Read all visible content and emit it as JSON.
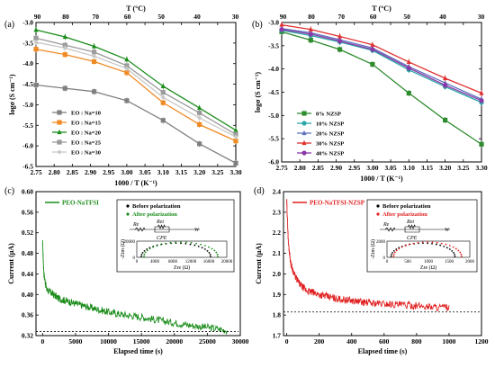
{
  "panels": {
    "a": "(a)",
    "b": "(b)",
    "c": "(c)",
    "d": "(d)"
  },
  "chart_data": [
    {
      "id": "a",
      "type": "line",
      "xlabel": "1000 / T (K⁻¹)",
      "ylabel": "logσ (S cm⁻¹)",
      "top_axis_label": "T (°C)",
      "top_ticks": [
        "90",
        "80",
        "70",
        "60",
        "50",
        "40",
        "30"
      ],
      "xlim": [
        2.75,
        3.3
      ],
      "ylim": [
        -6.5,
        -3.0
      ],
      "xticks": [
        "2.75",
        "2.80",
        "2.85",
        "2.90",
        "2.95",
        "3.00",
        "3.05",
        "3.10",
        "3.15",
        "3.20",
        "3.25",
        "3.30"
      ],
      "yticks": [
        "-6.5",
        "-6.0",
        "-5.5",
        "-5.0",
        "-4.5",
        "-4.0",
        "-3.5",
        "-3.0"
      ],
      "x": [
        2.75,
        2.83,
        2.91,
        3.0,
        3.1,
        3.2,
        3.3
      ],
      "legend_position": "lower-left",
      "series": [
        {
          "name": "EO : Na=10",
          "color": "#808080",
          "marker": "square",
          "values": [
            -4.52,
            -4.6,
            -4.68,
            -4.9,
            -5.38,
            -5.95,
            -6.42
          ]
        },
        {
          "name": "EO : Na=15",
          "color": "#f08a24",
          "marker": "square",
          "values": [
            -3.65,
            -3.78,
            -3.95,
            -4.22,
            -4.95,
            -5.48,
            -5.88
          ]
        },
        {
          "name": "EO : Na=20",
          "color": "#1a8c1a",
          "marker": "triangle",
          "values": [
            -3.18,
            -3.35,
            -3.58,
            -3.9,
            -4.55,
            -5.08,
            -5.62
          ]
        },
        {
          "name": "EO : Na=25",
          "color": "#9a9a9a",
          "marker": "square",
          "values": [
            -3.38,
            -3.55,
            -3.72,
            -4.05,
            -4.7,
            -5.2,
            -5.72
          ]
        },
        {
          "name": "EO : Na=30",
          "color": "#c8c8c8",
          "marker": "diamond",
          "values": [
            -3.48,
            -3.62,
            -3.82,
            -4.12,
            -4.82,
            -5.32,
            -5.78
          ]
        }
      ]
    },
    {
      "id": "b",
      "type": "line",
      "xlabel": "1000 / T (K⁻¹)",
      "ylabel": "logσ (S cm⁻¹)",
      "top_axis_label": "T (°C)",
      "top_ticks": [
        "90",
        "80",
        "70",
        "60",
        "50",
        "40",
        "30"
      ],
      "xlim": [
        2.75,
        3.3
      ],
      "ylim": [
        -6.0,
        -3.0
      ],
      "xticks": [
        "2.75",
        "2.80",
        "2.85",
        "2.90",
        "2.95",
        "3.00",
        "3.05",
        "3.10",
        "3.15",
        "3.20",
        "3.25",
        "3.30"
      ],
      "yticks": [
        "-6.0",
        "-5.5",
        "-5.0",
        "-4.5",
        "-4.0",
        "-3.5",
        "-3.0"
      ],
      "x": [
        2.75,
        2.83,
        2.91,
        3.0,
        3.1,
        3.2,
        3.3
      ],
      "legend_position": "lower-left",
      "series": [
        {
          "name": "0%   NZSP",
          "color": "#2e8b2e",
          "marker": "square",
          "values": [
            -3.2,
            -3.38,
            -3.58,
            -3.9,
            -4.52,
            -5.1,
            -5.62
          ]
        },
        {
          "name": "10%  NZSP",
          "color": "#2aa8a8",
          "marker": "circle",
          "values": [
            -3.17,
            -3.28,
            -3.42,
            -3.6,
            -4.02,
            -4.38,
            -4.72
          ]
        },
        {
          "name": "20%  NZSP",
          "color": "#6070c0",
          "marker": "triangle",
          "values": [
            -3.13,
            -3.22,
            -3.37,
            -3.55,
            -3.95,
            -4.3,
            -4.65
          ]
        },
        {
          "name": "30%  NZSP",
          "color": "#e03030",
          "marker": "triangle",
          "values": [
            -3.05,
            -3.15,
            -3.3,
            -3.48,
            -3.85,
            -4.2,
            -4.52
          ]
        },
        {
          "name": "40%  NZSP",
          "color": "#8a3aa8",
          "marker": "circle",
          "values": [
            -3.15,
            -3.25,
            -3.4,
            -3.58,
            -3.98,
            -4.35,
            -4.68
          ]
        }
      ]
    },
    {
      "id": "c",
      "type": "line",
      "title": "PEO-NaTFSI",
      "xlabel": "Elapsed time (s)",
      "ylabel": "Current (μA)",
      "xlim": [
        -1000,
        30000
      ],
      "ylim": [
        0.32,
        0.6
      ],
      "xticks": [
        "0",
        "5000",
        "10000",
        "15000",
        "20000",
        "25000",
        "30000"
      ],
      "yticks": [
        "0.32",
        "0.36",
        "0.40",
        "0.44",
        "0.48",
        "0.52",
        "0.56",
        "0.60"
      ],
      "color": "#1a8c1a",
      "x": [
        0,
        200,
        600,
        1200,
        2500,
        5000,
        8000,
        10000,
        12500,
        15000,
        17500,
        20000,
        22500,
        25000,
        28000
      ],
      "values": [
        0.5,
        0.44,
        0.41,
        0.404,
        0.392,
        0.382,
        0.372,
        0.366,
        0.36,
        0.356,
        0.35,
        0.345,
        0.34,
        0.336,
        0.33
      ],
      "baseline": 0.328,
      "inset": {
        "legend": [
          "Before polarization",
          "After polarization"
        ],
        "xlabel": "Zre (Ω)",
        "ylabel": "-Zim (Ω)",
        "xticks": [
          "0",
          "4000",
          "8000",
          "12000",
          "16000",
          "20000"
        ],
        "yticks": [
          "0",
          "4000",
          "8000",
          "12000",
          "16000",
          "20000"
        ],
        "circuit": [
          "Re",
          "Ret",
          "CPE",
          "W"
        ],
        "colors": {
          "before": "#000000",
          "after": "#1a8c1a"
        }
      }
    },
    {
      "id": "d",
      "type": "line",
      "title": "PEO-NaTFSI-NZSP",
      "xlabel": "Elapsed time (s)",
      "ylabel": "Current (μA)",
      "xlim": [
        -20,
        1200
      ],
      "ylim": [
        1.7,
        2.4
      ],
      "xticks": [
        "0",
        "200",
        "400",
        "600",
        "800",
        "1000",
        "1200"
      ],
      "yticks": [
        "1.7",
        "1.8",
        "1.9",
        "2.0",
        "2.1",
        "2.2",
        "2.3",
        "2.4"
      ],
      "color": "#e02020",
      "x": [
        0,
        10,
        25,
        50,
        80,
        120,
        200,
        300,
        400,
        500,
        600,
        700,
        800,
        900,
        1000
      ],
      "values": [
        2.35,
        2.15,
        2.05,
        1.99,
        1.95,
        1.92,
        1.9,
        1.88,
        1.87,
        1.86,
        1.855,
        1.85,
        1.845,
        1.84,
        1.835
      ],
      "baseline": 1.815,
      "inset": {
        "legend": [
          "Before polarization",
          "After polarization"
        ],
        "xlabel": "Zre (Ω)",
        "ylabel": "-Zim (Ω)",
        "xticks": [
          "0",
          "500",
          "1000",
          "1500",
          "2000"
        ],
        "yticks": [
          "0",
          "500",
          "1000",
          "1500",
          "2000"
        ],
        "circuit": [
          "Re",
          "Ret",
          "CPE",
          "W"
        ],
        "colors": {
          "before": "#000000",
          "after": "#e02020"
        }
      }
    }
  ]
}
